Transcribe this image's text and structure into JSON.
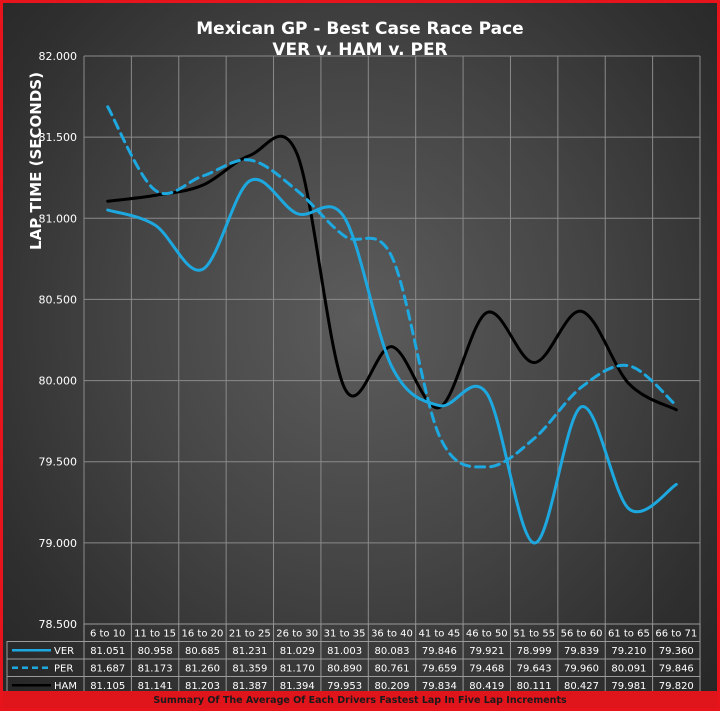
{
  "chart_data": {
    "type": "line",
    "title": "Mexican GP - Best Case Race Pace",
    "subtitle": "VER v. HAM v. PER",
    "ylabel": "LAP TIME (SECONDS)",
    "xlabel": "",
    "ylim": [
      78.5,
      82.0
    ],
    "yticks": [
      "82.000",
      "81.500",
      "81.000",
      "80.500",
      "80.000",
      "79.500",
      "79.000",
      "78.500"
    ],
    "grid": true,
    "legend": "data table below chart",
    "categories": [
      "6 to 10",
      "11 to 15",
      "16 to 20",
      "21 to 25",
      "26 to 30",
      "31 to 35",
      "36 to 40",
      "41 to 45",
      "46 to 50",
      "51 to 55",
      "56 to 60",
      "61 to 65",
      "66 to 71"
    ],
    "series": [
      {
        "name": "VER",
        "color": "#1ea8e0",
        "dash": "solid",
        "values": [
          81.051,
          80.958,
          80.685,
          81.231,
          81.029,
          81.003,
          80.083,
          79.846,
          79.921,
          78.999,
          79.839,
          79.21,
          79.36
        ],
        "labels": [
          "81.051",
          "80.958",
          "80.685",
          "81.231",
          "81.029",
          "81.003",
          "80.083",
          "79.846",
          "79.921",
          "78.999",
          "79.839",
          "79.210",
          "79.360"
        ]
      },
      {
        "name": "PER",
        "color": "#1ea8e0",
        "dash": "dashed",
        "values": [
          81.687,
          81.173,
          81.26,
          81.359,
          81.17,
          80.89,
          80.761,
          79.659,
          79.468,
          79.643,
          79.96,
          80.091,
          79.846
        ],
        "labels": [
          "81.687",
          "81.173",
          "81.260",
          "81.359",
          "81.170",
          "80.890",
          "80.761",
          "79.659",
          "79.468",
          "79.643",
          "79.960",
          "80.091",
          "79.846"
        ]
      },
      {
        "name": "HAM",
        "color": "#000000",
        "dash": "solid",
        "values": [
          81.105,
          81.141,
          81.203,
          81.387,
          81.394,
          79.953,
          80.209,
          79.834,
          80.419,
          80.111,
          80.427,
          79.981,
          79.82
        ],
        "labels": [
          "81.105",
          "81.141",
          "81.203",
          "81.387",
          "81.394",
          "79.953",
          "80.209",
          "79.834",
          "80.419",
          "80.111",
          "80.427",
          "79.981",
          "79.820"
        ]
      }
    ]
  },
  "footer": {
    "caption": "Summary Of The Average Of Each Drivers Fastest Lap In Five Lap Increments"
  }
}
